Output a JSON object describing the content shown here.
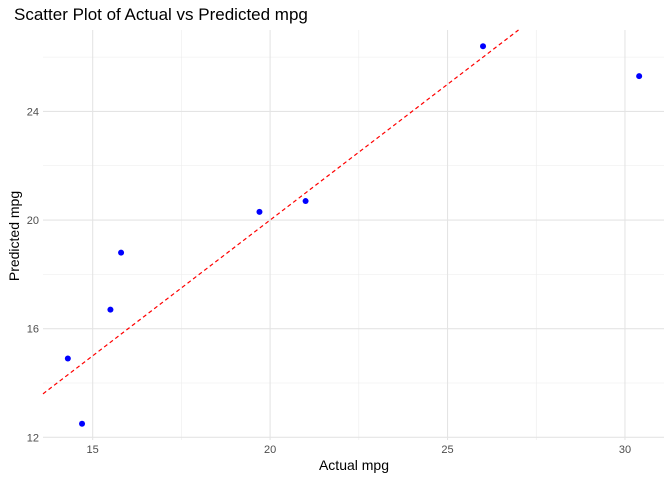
{
  "chart_data": {
    "type": "scatter",
    "title": "Scatter Plot of Actual vs Predicted mpg",
    "xlabel": "Actual mpg",
    "ylabel": "Predicted mpg",
    "xlim": [
      13.6,
      31.1
    ],
    "ylim": [
      11.9,
      27.0
    ],
    "x_ticks": [
      15,
      20,
      25,
      30
    ],
    "x_tick_labels": [
      "15",
      "20",
      "25",
      "30"
    ],
    "x_minor_ticks": [
      17.5,
      22.5,
      27.5
    ],
    "y_ticks": [
      12,
      16,
      20,
      24
    ],
    "y_tick_labels": [
      "12",
      "16",
      "20",
      "24"
    ],
    "y_minor_ticks": [
      14,
      18,
      22,
      26
    ],
    "grid": true,
    "point_color": "#0000FF",
    "reference_line": {
      "slope": 1,
      "intercept": 0,
      "color": "#FF0000",
      "style": "dashed"
    },
    "points": [
      {
        "x": 14.3,
        "y": 14.9
      },
      {
        "x": 14.7,
        "y": 12.5
      },
      {
        "x": 15.5,
        "y": 16.7
      },
      {
        "x": 15.8,
        "y": 18.8
      },
      {
        "x": 19.7,
        "y": 20.3
      },
      {
        "x": 21.0,
        "y": 20.7
      },
      {
        "x": 26.0,
        "y": 26.4
      },
      {
        "x": 30.4,
        "y": 25.3
      }
    ]
  }
}
